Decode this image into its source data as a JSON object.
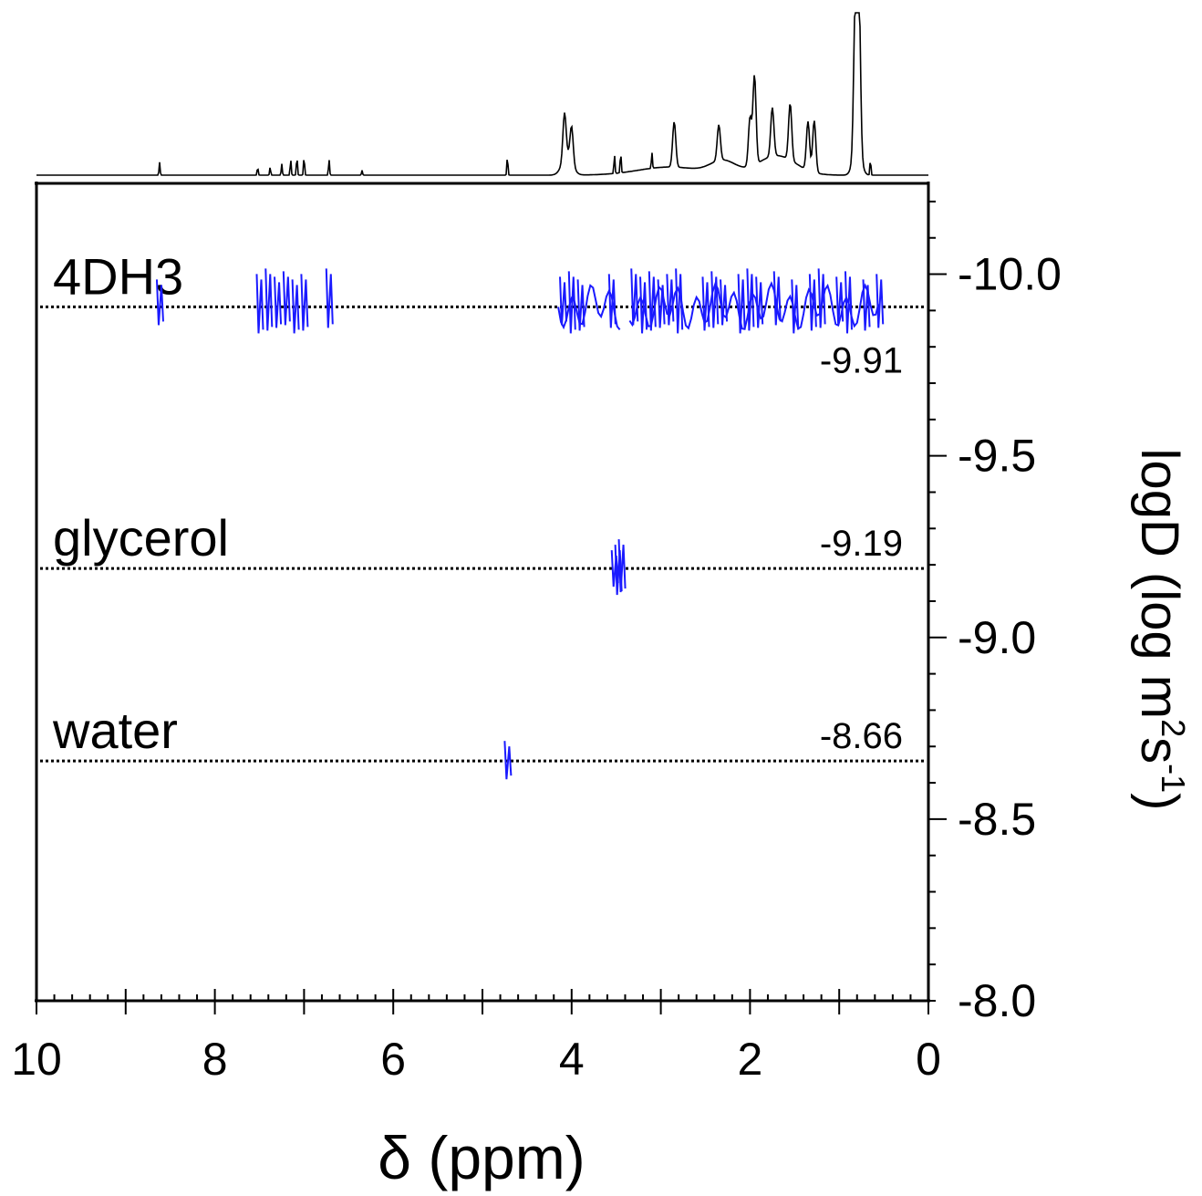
{
  "chart_data": {
    "type": "contour",
    "xlabel": "δ (ppm)",
    "ylabel_main": "logD (log m",
    "ylabel_sup1": "2",
    "ylabel_mid": "s",
    "ylabel_sup2": "-1",
    "ylabel_end": ")",
    "xlim": [
      10,
      0
    ],
    "ylim": [
      -8.0,
      -10.25
    ],
    "x_ticks": [
      "10",
      "8",
      "6",
      "4",
      "2",
      "0"
    ],
    "x_tick_values": [
      10,
      8,
      6,
      4,
      2,
      0
    ],
    "y_ticks": [
      "-10.0",
      "-9.5",
      "-9.0",
      "-8.5",
      "-8.0"
    ],
    "y_tick_values": [
      -10.0,
      -9.5,
      -9.0,
      -8.5,
      -8.0
    ],
    "spectrum_color": "#000000",
    "contour_color": "#1a1aff",
    "spectrum_peaks": [
      {
        "ppm": 8.62,
        "height": 0.08
      },
      {
        "ppm": 7.52,
        "height": 0.05
      },
      {
        "ppm": 7.38,
        "height": 0.05
      },
      {
        "ppm": 7.25,
        "height": 0.07
      },
      {
        "ppm": 7.15,
        "height": 0.1
      },
      {
        "ppm": 7.08,
        "height": 0.12
      },
      {
        "ppm": 7.0,
        "height": 0.12
      },
      {
        "ppm": 6.72,
        "height": 0.1
      },
      {
        "ppm": 6.35,
        "height": 0.03
      },
      {
        "ppm": 4.72,
        "height": 0.12
      },
      {
        "ppm": 4.08,
        "height": 0.28
      },
      {
        "ppm": 4.0,
        "height": 0.22
      },
      {
        "ppm": 3.52,
        "height": 0.12
      },
      {
        "ppm": 3.45,
        "height": 0.13
      },
      {
        "ppm": 3.1,
        "height": 0.1
      },
      {
        "ppm": 2.85,
        "height": 0.28
      },
      {
        "ppm": 2.35,
        "height": 0.22
      },
      {
        "ppm": 2.0,
        "height": 0.3
      },
      {
        "ppm": 1.95,
        "height": 0.55
      },
      {
        "ppm": 1.75,
        "height": 0.3
      },
      {
        "ppm": 1.55,
        "height": 0.35
      },
      {
        "ppm": 1.35,
        "height": 0.3
      },
      {
        "ppm": 1.28,
        "height": 0.32
      },
      {
        "ppm": 0.82,
        "height": 0.88
      },
      {
        "ppm": 0.78,
        "height": 1.0
      },
      {
        "ppm": 0.65,
        "height": 0.1
      }
    ],
    "species": [
      {
        "name": "4DH3",
        "logD": -9.91,
        "value_label": "-9.91",
        "signal_ppm": [
          8.62,
          7.5,
          7.4,
          7.3,
          7.2,
          7.1,
          7.0,
          6.72,
          4.1,
          4.0,
          3.9,
          3.55,
          3.3,
          3.2,
          3.1,
          3.0,
          2.9,
          2.8,
          2.5,
          2.4,
          2.3,
          2.1,
          2.0,
          1.9,
          1.7,
          1.5,
          1.3,
          1.2,
          1.0,
          0.9,
          0.7,
          0.55
        ]
      },
      {
        "name": "glycerol",
        "logD": -9.19,
        "value_label": "-9.19",
        "signal_ppm": [
          3.52,
          3.48,
          3.44
        ]
      },
      {
        "name": "water",
        "logD": -8.66,
        "value_label": "-8.66",
        "signal_ppm": [
          4.72
        ]
      }
    ]
  }
}
